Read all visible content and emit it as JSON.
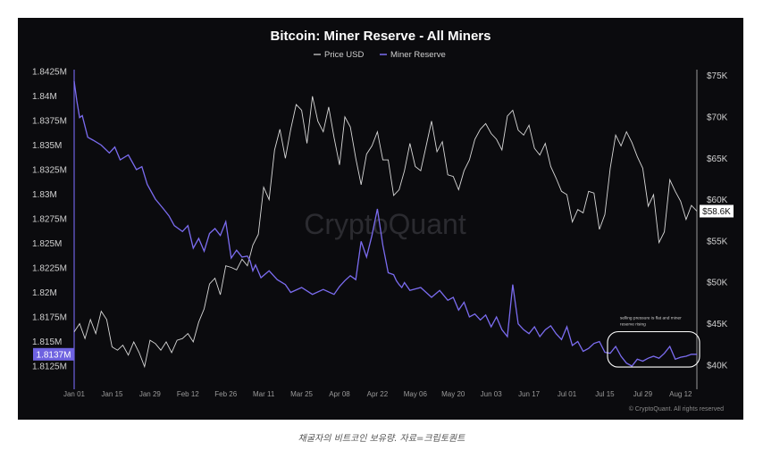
{
  "caption": "채굴자의 비트코인 보유량. 자료=크립토퀀트",
  "copyright": "© CryptoQuant. All rights reserved",
  "watermark": "CryptoQuant",
  "colors": {
    "background": "#0b0b0e",
    "price": "#d8d8d8",
    "reserve": "#7b6cf0",
    "text": "#cfcfcf"
  },
  "chart_data": {
    "type": "line",
    "title": "Bitcoin: Miner Reserve - All Miners",
    "legend": {
      "placement": "top-center",
      "entries": [
        "Price USD",
        "Miner Reserve"
      ]
    },
    "x_tick_labels": [
      "Jan 01",
      "Jan 15",
      "Jan 29",
      "Feb 12",
      "Feb 26",
      "Mar 11",
      "Mar 25",
      "Apr 08",
      "Apr 22",
      "May 06",
      "May 20",
      "Jun 03",
      "Jun 17",
      "Jul 01",
      "Jul 15",
      "Jul 29",
      "Aug 12"
    ],
    "xlim": [
      0,
      230
    ],
    "left_axis": {
      "ylim": [
        1.8105,
        1.8425
      ],
      "ticks": [
        1.8425,
        1.84,
        1.8375,
        1.835,
        1.8325,
        1.83,
        1.8275,
        1.825,
        1.8225,
        1.82,
        1.8175,
        1.815,
        1.8125
      ],
      "tick_labels": [
        "1.8425M",
        "1.84M",
        "1.8375M",
        "1.835M",
        "1.8325M",
        "1.83M",
        "1.8275M",
        "1.825M",
        "1.8225M",
        "1.82M",
        "1.8175M",
        "1.815M",
        "1.8125M"
      ],
      "current_label": "1.8137M",
      "current_value": 1.8137
    },
    "right_axis": {
      "ylim": [
        37500,
        75500
      ],
      "ticks": [
        75000,
        70000,
        65000,
        60000,
        55000,
        50000,
        45000,
        40000
      ],
      "tick_labels": [
        "$75K",
        "$70K",
        "$65K",
        "$60K",
        "$55K",
        "$50K",
        "$45K",
        "$40K"
      ],
      "current_label": "$58.6K",
      "current_value": 58600
    },
    "series": [
      {
        "name": "Miner Reserve",
        "axis": "left",
        "x": [
          0,
          1,
          2,
          3,
          5,
          7,
          10,
          13,
          15,
          17,
          20,
          23,
          25,
          27,
          30,
          33,
          35,
          37,
          40,
          42,
          44,
          46,
          48,
          50,
          52,
          54,
          56,
          58,
          60,
          62,
          64,
          65,
          66,
          67,
          69,
          72,
          75,
          78,
          80,
          84,
          88,
          92,
          96,
          98,
          100,
          102,
          104,
          106,
          108,
          110,
          112,
          114,
          116,
          118,
          119,
          120,
          121,
          122,
          124,
          128,
          132,
          135,
          138,
          140,
          142,
          144,
          146,
          148,
          150,
          152,
          154,
          156,
          158,
          160,
          162,
          164,
          166,
          168,
          170,
          172,
          174,
          176,
          178,
          180,
          182,
          184,
          186,
          188,
          190,
          192,
          194,
          196,
          198,
          200,
          202,
          204,
          206,
          208,
          210,
          212,
          214,
          216,
          218,
          220,
          222,
          224,
          226,
          228,
          230
        ],
        "y": [
          1.8415,
          1.8395,
          1.8378,
          1.838,
          1.8358,
          1.8355,
          1.835,
          1.8342,
          1.8348,
          1.8335,
          1.834,
          1.8325,
          1.8328,
          1.831,
          1.8295,
          1.8285,
          1.8278,
          1.8268,
          1.8262,
          1.8268,
          1.8245,
          1.8255,
          1.8242,
          1.826,
          1.8265,
          1.8258,
          1.8272,
          1.8235,
          1.8243,
          1.8236,
          1.8237,
          1.8232,
          1.8222,
          1.8228,
          1.8215,
          1.8222,
          1.8213,
          1.8208,
          1.82,
          1.8205,
          1.8198,
          1.8203,
          1.8198,
          1.8206,
          1.8212,
          1.8217,
          1.8213,
          1.8252,
          1.8236,
          1.8258,
          1.8285,
          1.8248,
          1.822,
          1.8218,
          1.8212,
          1.8208,
          1.8205,
          1.821,
          1.8202,
          1.8205,
          1.8195,
          1.8202,
          1.8192,
          1.8195,
          1.8182,
          1.819,
          1.8175,
          1.8178,
          1.8172,
          1.8177,
          1.8165,
          1.8175,
          1.8162,
          1.8155,
          1.8208,
          1.8168,
          1.8162,
          1.8158,
          1.8165,
          1.8155,
          1.8162,
          1.8166,
          1.8158,
          1.8152,
          1.8165,
          1.8146,
          1.815,
          1.814,
          1.8143,
          1.8148,
          1.815,
          1.8139,
          1.8138,
          1.8145,
          1.8135,
          1.8128,
          1.8125,
          1.8132,
          1.813,
          1.8133,
          1.8135,
          1.8133,
          1.8138,
          1.8145,
          1.8132,
          1.8134,
          1.8135,
          1.8137,
          1.8137
        ]
      },
      {
        "name": "Price USD",
        "axis": "right",
        "x": [
          0,
          2,
          4,
          6,
          8,
          10,
          12,
          14,
          16,
          18,
          20,
          22,
          24,
          26,
          28,
          30,
          32,
          34,
          36,
          38,
          40,
          42,
          44,
          46,
          48,
          50,
          52,
          54,
          56,
          58,
          60,
          62,
          64,
          66,
          68,
          70,
          72,
          74,
          76,
          78,
          80,
          82,
          84,
          86,
          88,
          90,
          92,
          94,
          96,
          98,
          100,
          102,
          104,
          106,
          108,
          110,
          112,
          114,
          116,
          118,
          120,
          122,
          124,
          126,
          128,
          130,
          132,
          134,
          136,
          138,
          140,
          142,
          144,
          146,
          148,
          150,
          152,
          154,
          156,
          158,
          160,
          162,
          164,
          166,
          168,
          170,
          172,
          174,
          176,
          178,
          180,
          182,
          184,
          186,
          188,
          190,
          192,
          194,
          196,
          198,
          200,
          202,
          204,
          206,
          208,
          210,
          212,
          214,
          216,
          218,
          220,
          222,
          224,
          226,
          228,
          230
        ],
        "y": [
          44000,
          45000,
          43200,
          45500,
          43800,
          46500,
          45500,
          42200,
          41800,
          42400,
          41200,
          42800,
          41500,
          39800,
          43000,
          42600,
          41800,
          42800,
          41500,
          43000,
          43200,
          43800,
          42800,
          45200,
          46800,
          49800,
          50500,
          48500,
          52000,
          51800,
          51500,
          52800,
          52000,
          54500,
          55800,
          61500,
          60000,
          66000,
          68500,
          65000,
          68500,
          71500,
          70800,
          66800,
          72500,
          69500,
          68200,
          71200,
          67500,
          64200,
          70000,
          68800,
          65000,
          61800,
          65500,
          66500,
          68200,
          64800,
          64800,
          60500,
          61200,
          63500,
          66800,
          64000,
          63500,
          66500,
          69500,
          65800,
          67000,
          63000,
          62800,
          61200,
          63500,
          64800,
          67300,
          68500,
          69200,
          68000,
          67300,
          66000,
          70100,
          70800,
          68400,
          67800,
          69000,
          66200,
          65400,
          66800,
          64000,
          62600,
          61000,
          60600,
          57300,
          58800,
          58400,
          61000,
          60800,
          56400,
          58200,
          63800,
          67800,
          66500,
          68200,
          66900,
          65200,
          63800,
          59200,
          60600,
          54800,
          56100,
          62400,
          61000,
          59800,
          57600,
          59300,
          58600
        ]
      }
    ],
    "annotations": [
      {
        "text_lines": [
          "selling pressure is flat and miner",
          "reserve rising"
        ],
        "x_range": [
          197,
          231
        ],
        "y_range": [
          1.8124,
          1.816
        ]
      }
    ]
  }
}
